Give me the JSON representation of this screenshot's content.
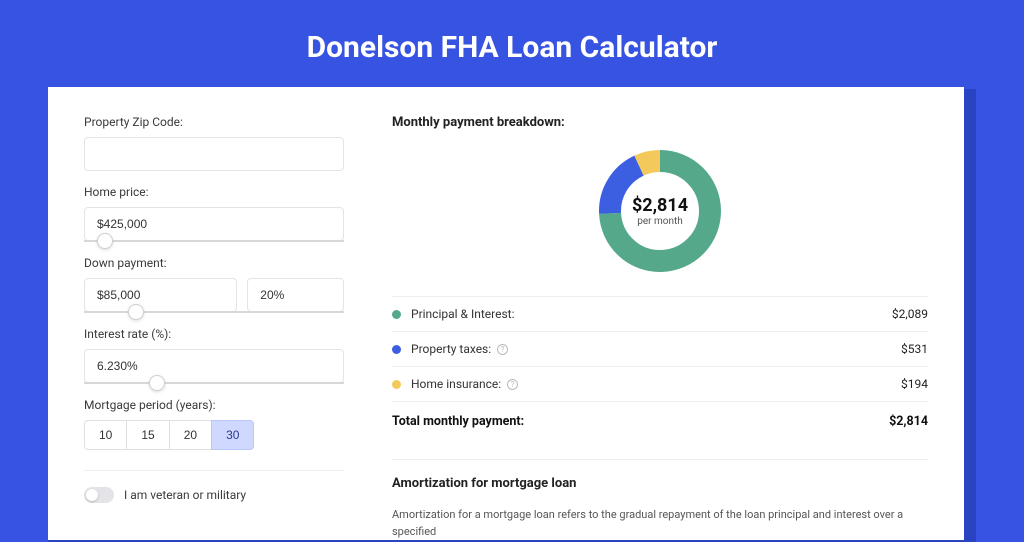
{
  "page": {
    "title": "Donelson FHA Loan Calculator",
    "background_color": "#3653e1",
    "card_shadow_color": "#2943c2"
  },
  "form": {
    "zip_label": "Property Zip Code:",
    "zip_value": "",
    "home_price_label": "Home price:",
    "home_price_value": "$425,000",
    "home_price_slider_pct": 8,
    "down_payment_label": "Down payment:",
    "down_payment_value": "$85,000",
    "down_payment_pct_value": "20%",
    "down_payment_slider_pct": 20,
    "interest_label": "Interest rate (%):",
    "interest_value": "6.230%",
    "interest_slider_pct": 28,
    "period_label": "Mortgage period (years):",
    "period_options": [
      "10",
      "15",
      "20",
      "30"
    ],
    "period_selected": "30",
    "veteran_label": "I am veteran or military",
    "veteran_on": false
  },
  "breakdown": {
    "title": "Monthly payment breakdown:",
    "donut": {
      "amount": "$2,814",
      "sub": "per month",
      "slices": [
        {
          "label": "Principal & Interest:",
          "value": 2089,
          "value_text": "$2,089",
          "color": "#55a98a",
          "has_info": false
        },
        {
          "label": "Property taxes:",
          "value": 531,
          "value_text": "$531",
          "color": "#3b5fe0",
          "has_info": true
        },
        {
          "label": "Home insurance:",
          "value": 194,
          "value_text": "$194",
          "color": "#f3c95b",
          "has_info": true
        }
      ],
      "stroke_width": 22,
      "radius": 50
    },
    "total_label": "Total monthly payment:",
    "total_value": "$2,814"
  },
  "amortization": {
    "title": "Amortization for mortgage loan",
    "text": "Amortization for a mortgage loan refers to the gradual repayment of the loan principal and interest over a specified"
  }
}
